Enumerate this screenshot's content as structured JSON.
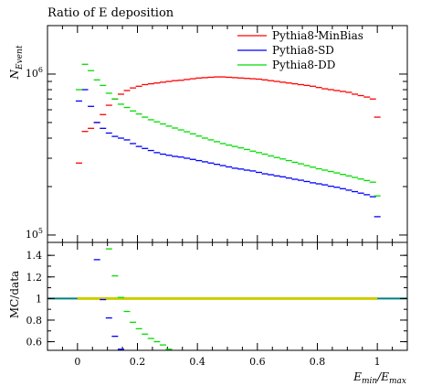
{
  "chart_data": {
    "title": "Ratio of E deposition",
    "type": "line",
    "top_panel": {
      "ylabel": "N_Event",
      "yscale": "log",
      "ylim": [
        90000,
        2000000
      ],
      "y_ticks": [
        {
          "value": 100000,
          "mantissa": "10",
          "exp": "5"
        },
        {
          "value": 1000000,
          "mantissa": "10",
          "exp": "6"
        }
      ],
      "legend_position": "top-right",
      "series": [
        {
          "name": "Pythia8-MinBias",
          "color": "#ff0000",
          "x": [
            0.005,
            0.025,
            0.045,
            0.065,
            0.085,
            0.105,
            0.125,
            0.145,
            0.165,
            0.185,
            0.205,
            0.225,
            0.245,
            0.265,
            0.285,
            0.305,
            0.325,
            0.345,
            0.365,
            0.385,
            0.405,
            0.425,
            0.445,
            0.465,
            0.485,
            0.505,
            0.525,
            0.545,
            0.565,
            0.585,
            0.605,
            0.625,
            0.645,
            0.665,
            0.685,
            0.705,
            0.725,
            0.745,
            0.765,
            0.785,
            0.805,
            0.825,
            0.845,
            0.865,
            0.885,
            0.905,
            0.925,
            0.945,
            0.965,
            0.985,
            1.0
          ],
          "y": [
            280000,
            440000,
            460000,
            500000,
            560000,
            640000,
            700000,
            750000,
            790000,
            820000,
            840000,
            860000,
            870000,
            880000,
            890000,
            900000,
            910000,
            915000,
            925000,
            935000,
            945000,
            950000,
            955000,
            960000,
            960000,
            955000,
            950000,
            945000,
            940000,
            935000,
            930000,
            920000,
            910000,
            900000,
            890000,
            880000,
            870000,
            860000,
            850000,
            840000,
            825000,
            810000,
            800000,
            790000,
            780000,
            770000,
            750000,
            735000,
            720000,
            700000,
            540000
          ]
        },
        {
          "name": "Pythia8-SD",
          "color": "#0000ff",
          "x": [
            0.005,
            0.025,
            0.045,
            0.065,
            0.085,
            0.105,
            0.125,
            0.145,
            0.165,
            0.185,
            0.205,
            0.225,
            0.245,
            0.265,
            0.285,
            0.305,
            0.325,
            0.345,
            0.365,
            0.385,
            0.405,
            0.425,
            0.445,
            0.465,
            0.485,
            0.505,
            0.525,
            0.545,
            0.565,
            0.585,
            0.605,
            0.625,
            0.645,
            0.665,
            0.685,
            0.705,
            0.725,
            0.745,
            0.765,
            0.785,
            0.805,
            0.825,
            0.845,
            0.865,
            0.885,
            0.905,
            0.925,
            0.945,
            0.965,
            0.985,
            1.0
          ],
          "y": [
            680000,
            800000,
            630000,
            500000,
            460000,
            430000,
            410000,
            400000,
            390000,
            370000,
            355000,
            345000,
            335000,
            325000,
            318000,
            313000,
            308000,
            305000,
            300000,
            295000,
            290000,
            285000,
            280000,
            275000,
            270000,
            265000,
            260000,
            257000,
            253000,
            250000,
            245000,
            240000,
            237000,
            233000,
            230000,
            226000,
            222000,
            219000,
            215000,
            211000,
            208000,
            205000,
            201000,
            198000,
            194000,
            190000,
            186000,
            182000,
            178000,
            173000,
            130000
          ]
        },
        {
          "name": "Pythia8-DD",
          "color": "#00dd00",
          "x": [
            0.005,
            0.025,
            0.045,
            0.065,
            0.085,
            0.105,
            0.125,
            0.145,
            0.165,
            0.185,
            0.205,
            0.225,
            0.245,
            0.265,
            0.285,
            0.305,
            0.325,
            0.345,
            0.365,
            0.385,
            0.405,
            0.425,
            0.445,
            0.465,
            0.485,
            0.505,
            0.525,
            0.545,
            0.565,
            0.585,
            0.605,
            0.625,
            0.645,
            0.665,
            0.685,
            0.705,
            0.725,
            0.745,
            0.765,
            0.785,
            0.805,
            0.825,
            0.845,
            0.865,
            0.885,
            0.905,
            0.925,
            0.945,
            0.965,
            0.985,
            1.0
          ],
          "y": [
            800000,
            1150000,
            1050000,
            920000,
            850000,
            760000,
            700000,
            650000,
            620000,
            590000,
            565000,
            540000,
            520000,
            505000,
            490000,
            475000,
            462000,
            450000,
            438000,
            425000,
            412000,
            400000,
            390000,
            380000,
            370000,
            362000,
            355000,
            348000,
            340000,
            332000,
            325000,
            318000,
            310000,
            303000,
            297000,
            290000,
            283000,
            277000,
            270000,
            264000,
            258000,
            253000,
            248000,
            243000,
            238000,
            233000,
            228000,
            223000,
            218000,
            213000,
            175000
          ]
        }
      ]
    },
    "bottom_panel": {
      "ylabel": "MC/data",
      "ylim": [
        0.52,
        1.52
      ],
      "y_ticks": [
        "0.6",
        "0.8",
        "1",
        "1.2",
        "1.4"
      ],
      "reference_line": 1.0,
      "band_color": "#cccc00",
      "line_color": "#008080",
      "series": [
        {
          "ref": "Pythia8-SD",
          "color": "#0000ff",
          "x": [
            0.065,
            0.085,
            0.105,
            0.125,
            0.145
          ],
          "y": [
            1.36,
            0.99,
            0.82,
            0.65,
            0.53
          ]
        },
        {
          "ref": "Pythia8-DD",
          "color": "#00dd00",
          "x": [
            0.105,
            0.125,
            0.145,
            0.165,
            0.185,
            0.205,
            0.225,
            0.245,
            0.265,
            0.285,
            0.305
          ],
          "y": [
            1.46,
            1.21,
            1.01,
            0.88,
            0.78,
            0.72,
            0.67,
            0.63,
            0.6,
            0.57,
            0.53
          ]
        }
      ]
    },
    "xlabel": "E_min / E_max",
    "xlim": [
      -0.1,
      1.1
    ],
    "x_ticks": [
      "0",
      "0.2",
      "0.4",
      "0.6",
      "0.8",
      "1"
    ]
  }
}
